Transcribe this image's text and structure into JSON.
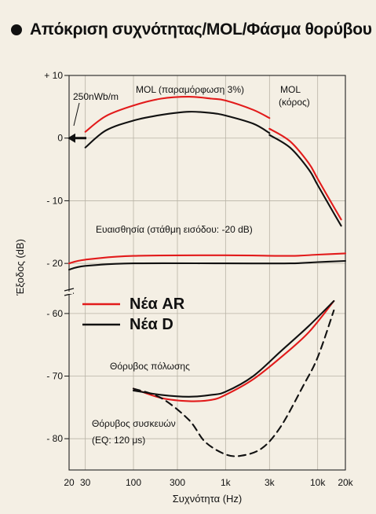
{
  "title": "Απόκριση συχνότητας/MOL/Φάσμα θορύβου",
  "chart_data": {
    "type": "line",
    "xlabel": "Συχνότητα (Hz)",
    "ylabel": "Έξοδος (dB)",
    "x_scale": "log",
    "xlim": [
      20,
      20000
    ],
    "x_ticks": [
      {
        "value": 20,
        "label": "20"
      },
      {
        "value": 30,
        "label": "30"
      },
      {
        "value": 100,
        "label": "100"
      },
      {
        "value": 300,
        "label": "300"
      },
      {
        "value": 1000,
        "label": "1k"
      },
      {
        "value": 3000,
        "label": "3k"
      },
      {
        "value": 10000,
        "label": "10k"
      },
      {
        "value": 20000,
        "label": "20k"
      }
    ],
    "y_ticks": [
      {
        "value": 10,
        "label": "+ 10"
      },
      {
        "value": 0,
        "label": "0"
      },
      {
        "value": -10,
        "label": "- 10"
      },
      {
        "value": -20,
        "label": "- 20"
      },
      {
        "value": -60,
        "label": "- 60"
      },
      {
        "value": -70,
        "label": "- 70"
      },
      {
        "value": -80,
        "label": "- 80"
      }
    ],
    "axis_break": {
      "from": -25,
      "to": -57
    },
    "grid": true,
    "legend": {
      "position": "center-left",
      "entries": [
        {
          "label": "Νέα AR",
          "color": "#e21b1b"
        },
        {
          "label": "Νέα D",
          "color": "#111111"
        }
      ]
    },
    "annotations": {
      "ref_level": "250nWb/m",
      "mol_distortion": "MOL (παραμόρφωση 3%)",
      "mol_chorus_1": "MOL",
      "mol_chorus_2": "(κόρος)",
      "sensitivity": "Ευαισθησία (στάθμη εισόδου: -20 dB)",
      "bias_noise": "Θόρυβος πόλωσης",
      "device_noise_1": "Θόρυβος συσκευών",
      "device_noise_2": "(EQ: 120 μs)"
    },
    "series": [
      {
        "legend": 0,
        "group": "mol3",
        "color": "#e21b1b",
        "dash": false,
        "points": [
          [
            30,
            1
          ],
          [
            50,
            3.5
          ],
          [
            100,
            5.2
          ],
          [
            200,
            6.3
          ],
          [
            400,
            6.6
          ],
          [
            700,
            6.3
          ],
          [
            1000,
            6
          ],
          [
            2000,
            4.5
          ],
          [
            3000,
            3.2
          ]
        ]
      },
      {
        "legend": 1,
        "group": "mol3",
        "color": "#111111",
        "dash": false,
        "points": [
          [
            30,
            -1.5
          ],
          [
            50,
            1.2
          ],
          [
            100,
            2.8
          ],
          [
            200,
            3.7
          ],
          [
            400,
            4.2
          ],
          [
            700,
            4
          ],
          [
            1000,
            3.6
          ],
          [
            2000,
            2.3
          ],
          [
            3000,
            0.8
          ]
        ]
      },
      {
        "legend": 0,
        "group": "molsat",
        "color": "#e21b1b",
        "dash": false,
        "points": [
          [
            3000,
            1.5
          ],
          [
            5000,
            -0.5
          ],
          [
            8000,
            -4
          ],
          [
            10000,
            -6.5
          ],
          [
            15000,
            -11
          ],
          [
            18000,
            -13
          ]
        ]
      },
      {
        "legend": 1,
        "group": "molsat",
        "color": "#111111",
        "dash": false,
        "points": [
          [
            3000,
            0.5
          ],
          [
            5000,
            -1.5
          ],
          [
            8000,
            -5
          ],
          [
            10000,
            -7.5
          ],
          [
            15000,
            -12
          ],
          [
            18000,
            -14
          ]
        ]
      },
      {
        "legend": 0,
        "group": "sensitivity",
        "color": "#e21b1b",
        "dash": false,
        "points": [
          [
            20,
            -20
          ],
          [
            30,
            -19.4
          ],
          [
            100,
            -18.8
          ],
          [
            1000,
            -18.7
          ],
          [
            5000,
            -18.8
          ],
          [
            10000,
            -18.6
          ],
          [
            20000,
            -18.4
          ]
        ]
      },
      {
        "legend": 1,
        "group": "sensitivity",
        "color": "#111111",
        "dash": false,
        "points": [
          [
            20,
            -21
          ],
          [
            30,
            -20.4
          ],
          [
            100,
            -20
          ],
          [
            1000,
            -20
          ],
          [
            5000,
            -20
          ],
          [
            10000,
            -19.8
          ],
          [
            20000,
            -19.6
          ]
        ]
      },
      {
        "legend": 0,
        "group": "bias_noise",
        "color": "#e21b1b",
        "dash": false,
        "points": [
          [
            100,
            -72
          ],
          [
            200,
            -73.5
          ],
          [
            400,
            -74
          ],
          [
            700,
            -73.8
          ],
          [
            1000,
            -73
          ],
          [
            2000,
            -70.5
          ],
          [
            4000,
            -67
          ],
          [
            8000,
            -63
          ],
          [
            15000,
            -58
          ]
        ]
      },
      {
        "legend": 1,
        "group": "bias_noise",
        "color": "#111111",
        "dash": false,
        "points": [
          [
            100,
            -72.3
          ],
          [
            200,
            -73
          ],
          [
            400,
            -73.3
          ],
          [
            700,
            -73
          ],
          [
            1000,
            -72.5
          ],
          [
            2000,
            -70
          ],
          [
            4000,
            -66
          ],
          [
            8000,
            -62
          ],
          [
            15000,
            -58
          ]
        ]
      },
      {
        "legend": 1,
        "group": "device_noise",
        "color": "#111111",
        "dash": true,
        "points": [
          [
            100,
            -72
          ],
          [
            200,
            -73.5
          ],
          [
            400,
            -77
          ],
          [
            600,
            -80.5
          ],
          [
            1000,
            -82.5
          ],
          [
            1500,
            -82.7
          ],
          [
            2500,
            -81.5
          ],
          [
            4000,
            -78
          ],
          [
            7000,
            -71.5
          ],
          [
            10000,
            -67
          ],
          [
            15000,
            -59.5
          ]
        ]
      }
    ]
  }
}
